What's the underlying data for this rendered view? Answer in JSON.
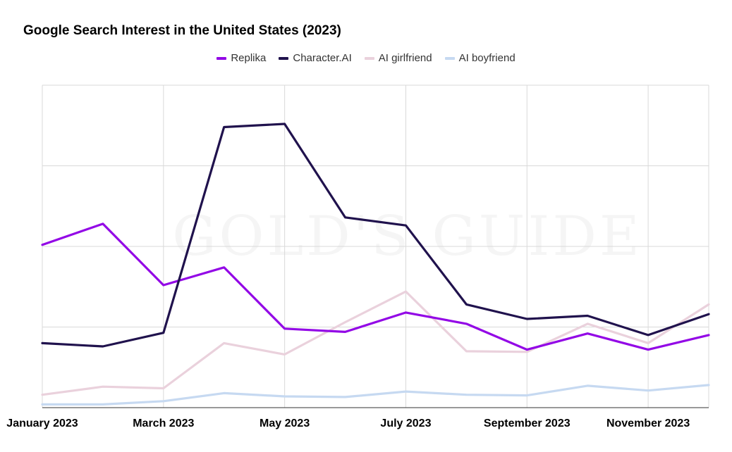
{
  "chart_data": {
    "type": "line",
    "title": "Google Search Interest in the United States (2023)",
    "watermark": "GOLD'S GUIDE",
    "x": [
      "Jan 2023",
      "Feb 2023",
      "Mar 2023",
      "Apr 2023",
      "May 2023",
      "Jun 2023",
      "Jul 2023",
      "Aug 2023",
      "Sep 2023",
      "Oct 2023",
      "Nov 2023",
      "Dec 2023"
    ],
    "xtick_labels": [
      {
        "index": 0,
        "label": "January 2023"
      },
      {
        "index": 2,
        "label": "March 2023"
      },
      {
        "index": 4,
        "label": "May 2023"
      },
      {
        "index": 6,
        "label": "July 2023"
      },
      {
        "index": 8,
        "label": "September 2023"
      },
      {
        "index": 10,
        "label": "November 2023"
      }
    ],
    "ylim": [
      0,
      100
    ],
    "y_gridlines": [
      0,
      25,
      50,
      75,
      100
    ],
    "grid": true,
    "legend_position": "top-center",
    "series": [
      {
        "name": "AI boyfriend",
        "color": "#c6d9f1",
        "values": [
          1,
          1,
          2,
          4.5,
          3.5,
          3.3,
          5,
          4,
          3.8,
          6.8,
          5.3,
          7
        ]
      },
      {
        "name": "AI girlfriend",
        "color": "#ead1dc",
        "values": [
          4,
          6.5,
          6,
          20,
          16.5,
          26.5,
          36,
          17.5,
          17.3,
          26,
          20,
          32
        ]
      },
      {
        "name": "Replika",
        "color": "#9308e6",
        "values": [
          50.5,
          57,
          38,
          43.5,
          24.5,
          23.5,
          29.5,
          26,
          18,
          23,
          18,
          22.5
        ]
      },
      {
        "name": "Character.AI",
        "color": "#20124d",
        "values": [
          20,
          19,
          23.2,
          87,
          88,
          59,
          56.5,
          32,
          27.5,
          28.5,
          22.5,
          29
        ]
      }
    ]
  },
  "legend": [
    {
      "name": "Replika",
      "color": "#9308e6"
    },
    {
      "name": "Character.AI",
      "color": "#20124d"
    },
    {
      "name": "AI girlfriend",
      "color": "#ead1dc"
    },
    {
      "name": "AI boyfriend",
      "color": "#c6d9f1"
    }
  ]
}
